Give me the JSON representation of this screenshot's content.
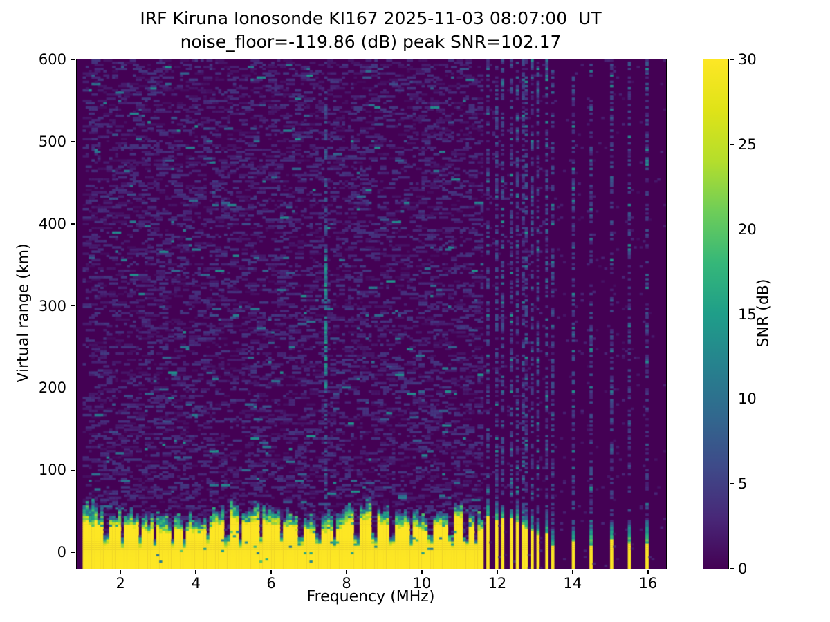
{
  "chart_data": {
    "type": "heatmap",
    "title": "IRF Kiruna Ionosonde KI167 2025-11-03 08:07:00  UT",
    "subtitle": "noise_floor=-119.86 (dB) peak SNR=102.17",
    "xlabel": "Frequency (MHz)",
    "ylabel": "Virtual range (km)",
    "colorbar_label": "SNR (dB)",
    "x_range": [
      0.84,
      16.48
    ],
    "y_range": [
      -20,
      600
    ],
    "x_ticks": [
      2,
      4,
      6,
      8,
      10,
      12,
      14,
      16
    ],
    "y_ticks": [
      0,
      100,
      200,
      300,
      400,
      500,
      600
    ],
    "colorbar_ticks": [
      0,
      5,
      10,
      15,
      20,
      25,
      30
    ],
    "color_range": [
      0,
      30
    ],
    "colormap": "viridis",
    "colormap_stops": [
      [
        0.0,
        "#440154"
      ],
      [
        0.1,
        "#482878"
      ],
      [
        0.2,
        "#3e4a89"
      ],
      [
        0.3,
        "#31688e"
      ],
      [
        0.4,
        "#26828e"
      ],
      [
        0.5,
        "#1f9e89"
      ],
      [
        0.6,
        "#35b779"
      ],
      [
        0.7,
        "#6dcd59"
      ],
      [
        0.8,
        "#b4de2c"
      ],
      [
        0.9,
        "#dfe318"
      ],
      [
        1.0,
        "#fde725"
      ]
    ],
    "stats": {
      "noise_floor_db": -119.86,
      "peak_snr_db": 102.17
    },
    "features": {
      "seed": 167,
      "bins": {
        "freq": 200,
        "range": 240
      },
      "blank_below_mhz": 1.02,
      "continuous_end_mhz": 11.62,
      "ground_band": {
        "solid_top_km_min": 23,
        "solid_top_km_max": 41,
        "fade_km_min": 12,
        "fade_km_max": 26,
        "notch_freqs_mhz": [
          1.55,
          2.08,
          2.5,
          2.95,
          3.35,
          3.7,
          4.3,
          4.75,
          5.2,
          5.75,
          6.3,
          6.75,
          7.2,
          7.7,
          8.2,
          8.7,
          9.2,
          9.7,
          10.2,
          10.7,
          11.15,
          11.45
        ]
      },
      "interference_streak": {
        "freq_mhz": 7.45,
        "strong_km": [
          200,
          370
        ],
        "weak_top_km": 560
      },
      "dense_stripes": {
        "start_mhz": 11.78,
        "end_mhz": 13.3,
        "spacing_mhz": 0.19,
        "stub_km_first": 46,
        "stub_km_last": 22
      },
      "sparse_stripes_mhz": [
        13.5,
        14.0,
        14.5,
        15.0,
        15.5,
        16.0
      ],
      "noise": {
        "density": 0.42,
        "teal_prob": 0.018
      }
    }
  }
}
